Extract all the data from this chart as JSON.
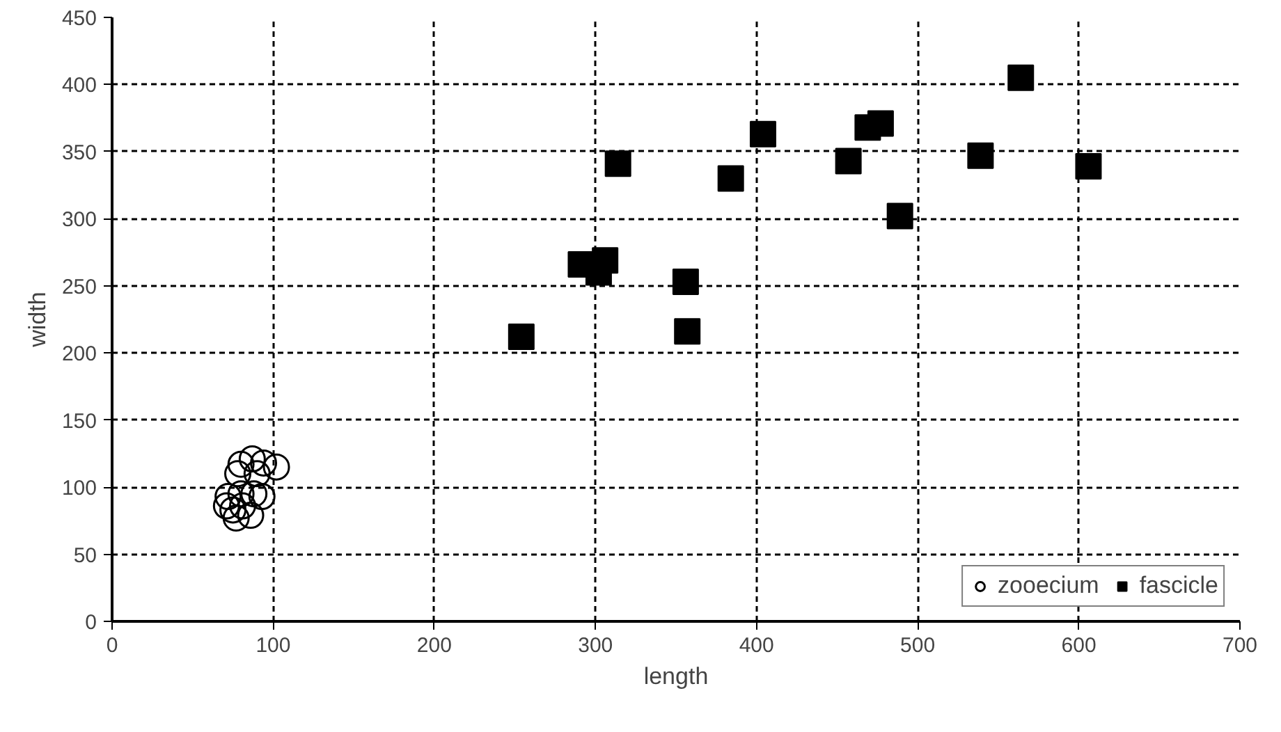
{
  "chart_data": {
    "type": "scatter",
    "xlabel": "length",
    "ylabel": "width",
    "xlim": [
      0,
      700
    ],
    "xticks": [
      0,
      100,
      200,
      300,
      400,
      500,
      600,
      700
    ],
    "ylim": [
      0,
      450
    ],
    "yticks": [
      0,
      50,
      100,
      150,
      200,
      250,
      300,
      350,
      400,
      450
    ],
    "grid": true,
    "line_style": "dashed",
    "legend": "bottom right",
    "series": [
      {
        "name": "zooecium",
        "color": "#000000",
        "marker": "circle",
        "x": [
          80,
          87,
          94,
          102,
          78,
          90,
          72,
          80,
          88,
          93,
          71,
          75,
          77,
          86,
          81
        ],
        "values": [
          117,
          121,
          118,
          115,
          110,
          110,
          93,
          95,
          95,
          93,
          86,
          83,
          77,
          79,
          86
        ]
      },
      {
        "name": "fascicle",
        "color": "#000000",
        "marker": "square",
        "x": [
          254,
          291,
          302,
          306,
          314,
          356,
          357,
          384,
          404,
          457,
          469,
          477,
          489,
          539,
          564,
          606
        ],
        "values": [
          212,
          266,
          260,
          269,
          341,
          253,
          216,
          330,
          363,
          343,
          368,
          371,
          302,
          347,
          405,
          339
        ]
      }
    ]
  }
}
